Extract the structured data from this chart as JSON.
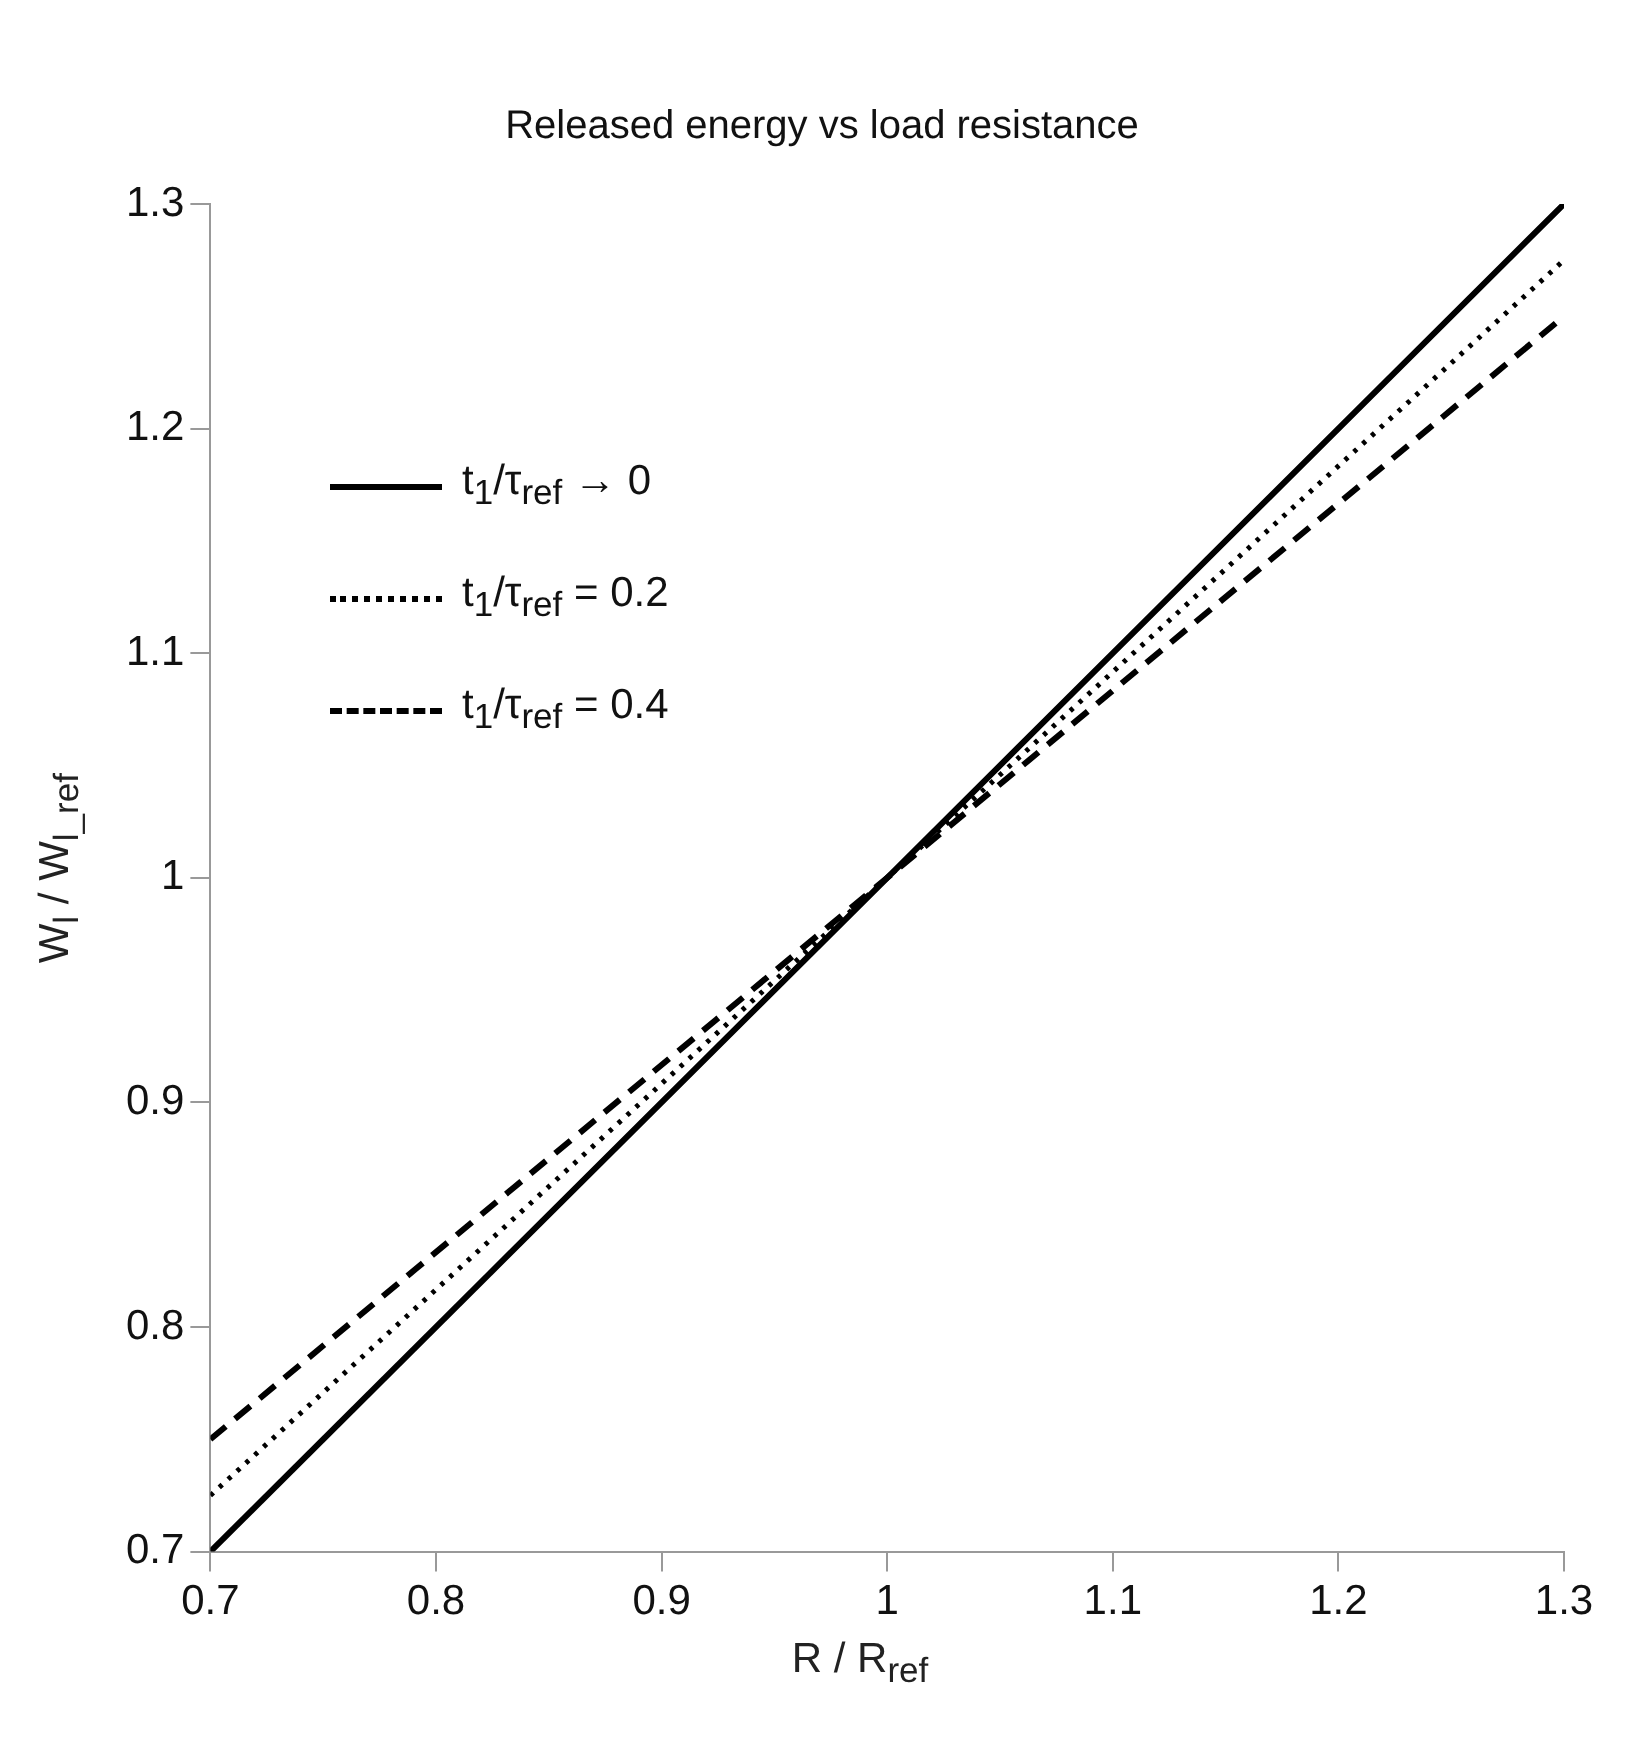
{
  "chart_data": {
    "type": "line",
    "title": "Released energy vs load resistance",
    "xlabel": "R / R$_{ref}$",
    "ylabel": "W$_{l}$ / W$_{l_ref}$",
    "x": [
      0.7,
      1,
      1.3
    ],
    "series": [
      {
        "name": "t$_{1}$/τ$_{ref}$ → 0",
        "color": "#000000",
        "values": [
          0.7,
          1,
          1.3
        ],
        "line_style": "solid"
      },
      {
        "name": "t$_{1}$/τ$_{ref}$ = 0.2",
        "color": "#000000",
        "values": [
          0.725,
          1,
          1.275
        ],
        "line_style": "dotted"
      },
      {
        "name": "t$_{1}$/τ$_{ref}$ = 0.4",
        "color": "#000000",
        "values": [
          0.75,
          1,
          1.25
        ],
        "line_style": "dashed"
      }
    ],
    "xlim": [
      0.7,
      1.3
    ],
    "xticks": [
      0.7,
      0.8,
      0.9,
      1,
      1.1,
      1.2,
      1.3
    ],
    "ylim": [
      0.7,
      1.3
    ],
    "yticks": [
      0.7,
      0.8,
      0.9,
      1,
      1.1,
      1.2,
      1.3
    ],
    "grid": false,
    "legend": "top left",
    "marker": "none"
  }
}
